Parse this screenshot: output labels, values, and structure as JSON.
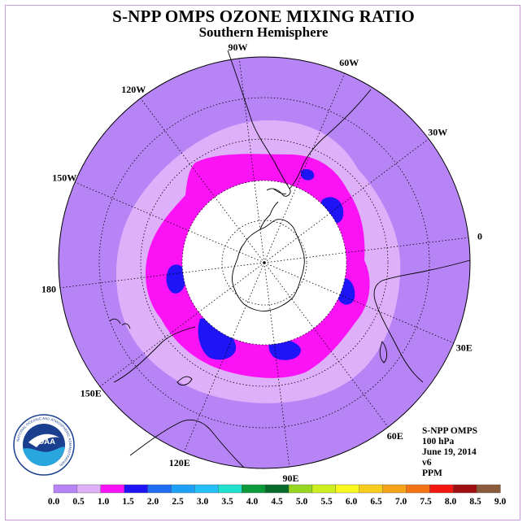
{
  "title": "S-NPP OMPS OZONE MIXING RATIO",
  "subtitle": "Southern Hemisphere",
  "longitude_labels": [
    "0",
    "30E",
    "60E",
    "90E",
    "120E",
    "150E",
    "180",
    "150W",
    "120W",
    "90W",
    "60W",
    "30W"
  ],
  "info": {
    "instrument": "S-NPP OMPS",
    "pressure_level": "100 hPa",
    "date": "June 19, 2014",
    "version": "v6",
    "units": "PPM"
  },
  "logo": {
    "name": "noaa-logo",
    "text": "NOAA",
    "ring_text": "NATIONAL OCEANIC AND ATMOSPHERIC ADMINISTRATION"
  },
  "legend": {
    "ticks": [
      "0.0",
      "0.5",
      "1.0",
      "1.5",
      "2.0",
      "2.5",
      "3.0",
      "3.5",
      "4.0",
      "4.5",
      "5.0",
      "5.5",
      "6.0",
      "6.5",
      "7.0",
      "7.5",
      "8.0",
      "8.5",
      "9.0"
    ],
    "colors": [
      "#b784f6",
      "#dfb0fa",
      "#fb13f5",
      "#1e14f5",
      "#1e6cf3",
      "#1fa0f7",
      "#23bff6",
      "#20e0d0",
      "#0a9a3a",
      "#066a2a",
      "#96d61f",
      "#cfee1f",
      "#f8f81f",
      "#f8cc1b",
      "#f6a319",
      "#f47314",
      "#f4170f",
      "#a01010",
      "#8b5a3a"
    ]
  },
  "colors": {
    "level_0_05": "#b784f6",
    "level_05_10": "#dfb0fa",
    "level_10_15": "#fb13f5",
    "level_15_20": "#1e14f5",
    "no_data": "#ffffff"
  }
}
